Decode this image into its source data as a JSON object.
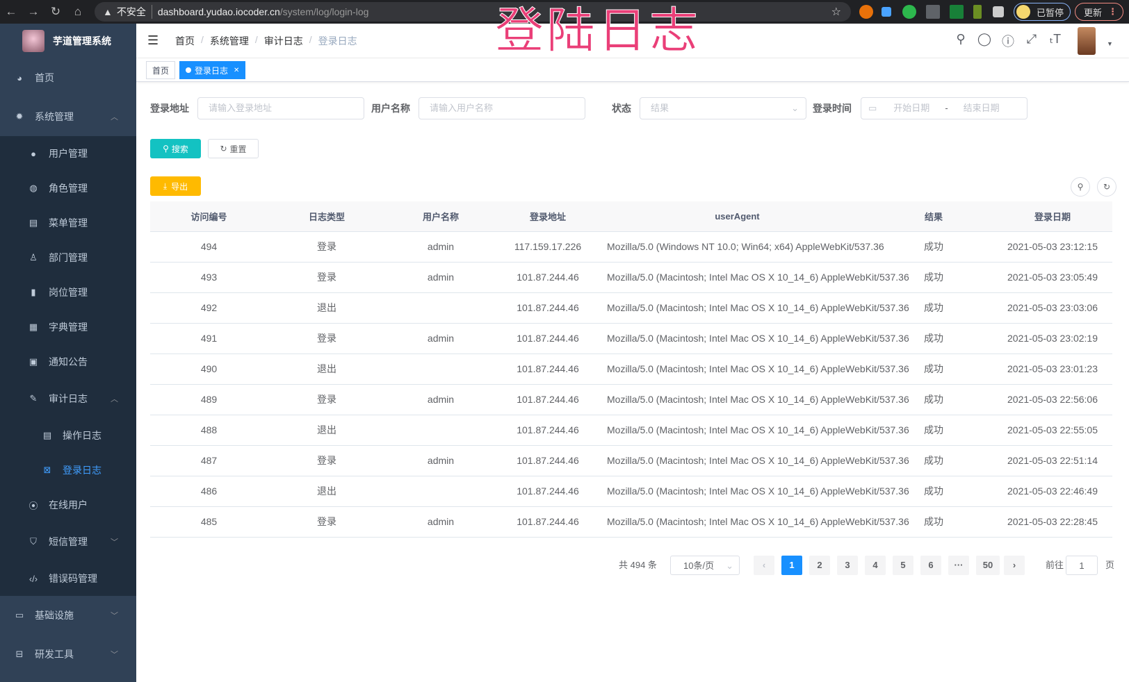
{
  "browser": {
    "insecure_label": "不安全",
    "url_host": "dashboard.yudao.iocoder.cn",
    "url_path": "/system/log/login-log",
    "paused_label": "已暂停",
    "update_label": "更新"
  },
  "overlay_title": "登陆日志",
  "sidebar": {
    "app_title": "芋道管理系统",
    "items": [
      {
        "label": "首页",
        "icon": "dashboard-icon"
      },
      {
        "label": "系统管理",
        "icon": "gear-icon",
        "expanded": true,
        "children": [
          {
            "label": "用户管理",
            "icon": "user-icon"
          },
          {
            "label": "角色管理",
            "icon": "peoples-icon"
          },
          {
            "label": "菜单管理",
            "icon": "tree-table-icon"
          },
          {
            "label": "部门管理",
            "icon": "tree-icon"
          },
          {
            "label": "岗位管理",
            "icon": "post-icon"
          },
          {
            "label": "字典管理",
            "icon": "dict-icon"
          },
          {
            "label": "通知公告",
            "icon": "message-icon"
          },
          {
            "label": "审计日志",
            "icon": "log-icon",
            "expanded": true,
            "children": [
              {
                "label": "操作日志",
                "icon": "form-icon"
              },
              {
                "label": "登录日志",
                "icon": "logininfor-icon",
                "active": true
              }
            ]
          },
          {
            "label": "在线用户",
            "icon": "online-icon"
          },
          {
            "label": "短信管理",
            "icon": "validcode-icon"
          },
          {
            "label": "错误码管理",
            "icon": "code-icon"
          }
        ]
      },
      {
        "label": "基础设施",
        "icon": "monitor-icon"
      },
      {
        "label": "研发工具",
        "icon": "tool-icon"
      }
    ]
  },
  "breadcrumb": [
    "首页",
    "系统管理",
    "审计日志",
    "登录日志"
  ],
  "tags": [
    {
      "label": "首页"
    },
    {
      "label": "登录日志",
      "active": true
    }
  ],
  "filters": {
    "ip_label": "登录地址",
    "ip_placeholder": "请输入登录地址",
    "user_label": "用户名称",
    "user_placeholder": "请输入用户名称",
    "status_label": "状态",
    "status_placeholder": "结果",
    "time_label": "登录时间",
    "start_placeholder": "开始日期",
    "range_sep": "-",
    "end_placeholder": "结束日期"
  },
  "buttons": {
    "search": "搜索",
    "reset": "重置",
    "export": "导出"
  },
  "colors": {
    "sidebar": "#304156",
    "submenu": "#1f2d3d",
    "primary": "#1890ff",
    "search_btn": "#13c2c2",
    "export_btn": "#ffba00",
    "overlay": "#ea3f78"
  },
  "table": {
    "columns": [
      "访问编号",
      "日志类型",
      "用户名称",
      "登录地址",
      "userAgent",
      "结果",
      "登录日期"
    ],
    "rows": [
      [
        "494",
        "登录",
        "admin",
        "117.159.17.226",
        "Mozilla/5.0 (Windows NT 10.0; Win64; x64) AppleWebKit/537.36",
        "成功",
        "2021-05-03 23:12:15"
      ],
      [
        "493",
        "登录",
        "admin",
        "101.87.244.46",
        "Mozilla/5.0 (Macintosh; Intel Mac OS X 10_14_6) AppleWebKit/537.36",
        "成功",
        "2021-05-03 23:05:49"
      ],
      [
        "492",
        "退出",
        "",
        "101.87.244.46",
        "Mozilla/5.0 (Macintosh; Intel Mac OS X 10_14_6) AppleWebKit/537.36",
        "成功",
        "2021-05-03 23:03:06"
      ],
      [
        "491",
        "登录",
        "admin",
        "101.87.244.46",
        "Mozilla/5.0 (Macintosh; Intel Mac OS X 10_14_6) AppleWebKit/537.36",
        "成功",
        "2021-05-03 23:02:19"
      ],
      [
        "490",
        "退出",
        "",
        "101.87.244.46",
        "Mozilla/5.0 (Macintosh; Intel Mac OS X 10_14_6) AppleWebKit/537.36",
        "成功",
        "2021-05-03 23:01:23"
      ],
      [
        "489",
        "登录",
        "admin",
        "101.87.244.46",
        "Mozilla/5.0 (Macintosh; Intel Mac OS X 10_14_6) AppleWebKit/537.36",
        "成功",
        "2021-05-03 22:56:06"
      ],
      [
        "488",
        "退出",
        "",
        "101.87.244.46",
        "Mozilla/5.0 (Macintosh; Intel Mac OS X 10_14_6) AppleWebKit/537.36",
        "成功",
        "2021-05-03 22:55:05"
      ],
      [
        "487",
        "登录",
        "admin",
        "101.87.244.46",
        "Mozilla/5.0 (Macintosh; Intel Mac OS X 10_14_6) AppleWebKit/537.36",
        "成功",
        "2021-05-03 22:51:14"
      ],
      [
        "486",
        "退出",
        "",
        "101.87.244.46",
        "Mozilla/5.0 (Macintosh; Intel Mac OS X 10_14_6) AppleWebKit/537.36",
        "成功",
        "2021-05-03 22:46:49"
      ],
      [
        "485",
        "登录",
        "admin",
        "101.87.244.46",
        "Mozilla/5.0 (Macintosh; Intel Mac OS X 10_14_6) AppleWebKit/537.36",
        "成功",
        "2021-05-03 22:28:45"
      ]
    ]
  },
  "pagination": {
    "total_label": "共 494 条",
    "page_size": "10条/页",
    "pages": [
      "1",
      "2",
      "3",
      "4",
      "5",
      "6",
      "···",
      "50"
    ],
    "current": "1",
    "goto_label": "前往",
    "goto_value": "1",
    "page_unit": "页"
  }
}
